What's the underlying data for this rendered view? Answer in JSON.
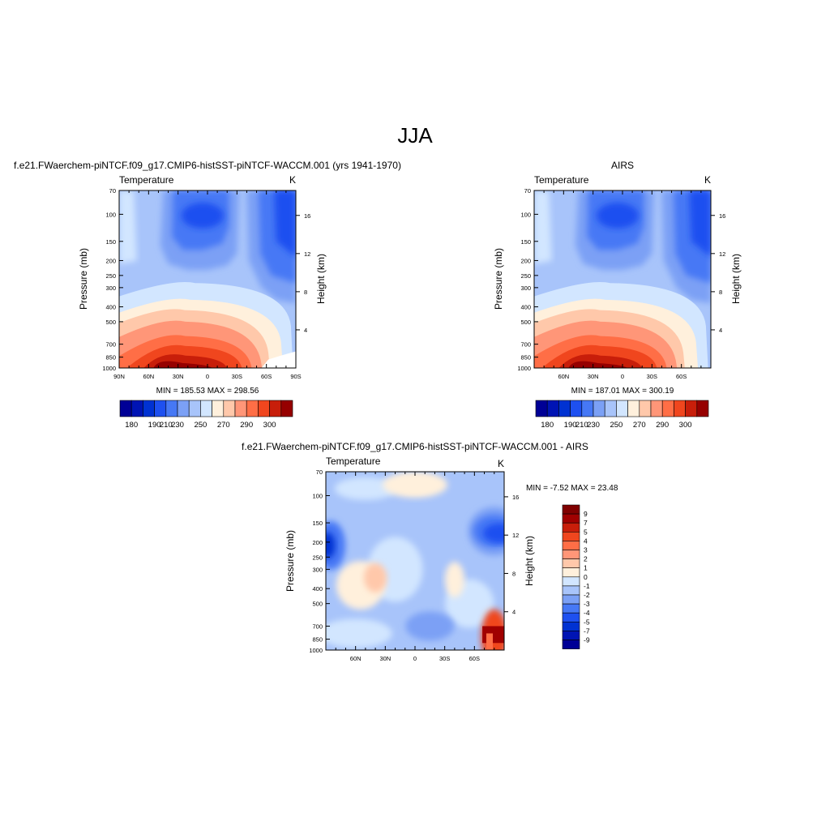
{
  "page_title": "JJA",
  "colors": {
    "temp_scale": [
      "#000096",
      "#0014b4",
      "#0032d2",
      "#1e50f0",
      "#4678f5",
      "#7ba0f5",
      "#a8c4fa",
      "#d2e6ff",
      "#fff0dc",
      "#ffc8aa",
      "#ff9678",
      "#ff6e46",
      "#f0461e",
      "#c81e0a",
      "#960000"
    ],
    "diff_scale": [
      "#000096",
      "#0014b4",
      "#0032d2",
      "#1e50f0",
      "#4678f5",
      "#7ba0f5",
      "#a8c4fa",
      "#d2e6ff",
      "#fff0dc",
      "#ffc8aa",
      "#ff9678",
      "#ff6e46",
      "#f0461e",
      "#c81e0a",
      "#a00000",
      "#800000"
    ]
  },
  "chart_data": [
    {
      "type": "heatmap",
      "id": "model",
      "title": "f.e21.FWaerchem-piNTCF.f09_g17.CMIP6-histSST-piNTCF-WACCM.001 (yrs 1941-1970)",
      "left_label": "Temperature",
      "units": "K",
      "ylabel": "Pressure (mb)",
      "y2label": "Height (km)",
      "x_ticks": [
        "90N",
        "60N",
        "30N",
        "0",
        "30S",
        "60S",
        "90S"
      ],
      "x_tick_values": [
        90,
        60,
        30,
        0,
        -30,
        -60,
        -90
      ],
      "y_ticks": [
        "70",
        "100",
        "150",
        "200",
        "250",
        "300",
        "400",
        "500",
        "700",
        "850",
        "1000"
      ],
      "y_tick_values": [
        70,
        100,
        150,
        200,
        250,
        300,
        400,
        500,
        700,
        850,
        1000
      ],
      "y2_ticks": [
        "4",
        "8",
        "12",
        "16"
      ],
      "y2_tick_values": [
        4,
        8,
        12,
        16
      ],
      "ylim": [
        1000,
        70
      ],
      "xlim": [
        90,
        -90
      ],
      "stats": "MIN = 185.53  MAX = 298.56",
      "stats_min": 185.53,
      "stats_max": 298.56,
      "colorbar_labels": [
        "180",
        "190",
        "210",
        "230",
        "250",
        "270",
        "290",
        "300"
      ],
      "colorbar_levels": [
        180,
        185,
        190,
        200,
        210,
        220,
        230,
        240,
        250,
        260,
        270,
        280,
        290,
        295,
        300
      ],
      "missing_bottom_right": true
    },
    {
      "type": "heatmap",
      "id": "obs",
      "title": "AIRS",
      "left_label": "Temperature",
      "units": "K",
      "ylabel": "Pressure (mb)",
      "y2label": "Height (km)",
      "x_ticks": [
        "60N",
        "30N",
        "0",
        "30S",
        "60S"
      ],
      "x_tick_values": [
        60,
        30,
        0,
        -30,
        -60
      ],
      "y_ticks": [
        "70",
        "100",
        "150",
        "200",
        "250",
        "300",
        "400",
        "500",
        "700",
        "850",
        "1000"
      ],
      "y_tick_values": [
        70,
        100,
        150,
        200,
        250,
        300,
        400,
        500,
        700,
        850,
        1000
      ],
      "y2_ticks": [
        "4",
        "8",
        "12",
        "16"
      ],
      "y2_tick_values": [
        4,
        8,
        12,
        16
      ],
      "ylim": [
        1000,
        70
      ],
      "xlim": [
        90,
        -90
      ],
      "stats": "MIN = 187.01  MAX = 300.19",
      "stats_min": 187.01,
      "stats_max": 300.19,
      "colorbar_labels": [
        "180",
        "190",
        "210",
        "230",
        "250",
        "270",
        "290",
        "300"
      ],
      "colorbar_levels": [
        180,
        185,
        190,
        200,
        210,
        220,
        230,
        240,
        250,
        260,
        270,
        280,
        290,
        295,
        300
      ]
    },
    {
      "type": "heatmap",
      "id": "diff",
      "title": "f.e21.FWaerchem-piNTCF.f09_g17.CMIP6-histSST-piNTCF-WACCM.001 - AIRS",
      "left_label": "Temperature",
      "units": "K",
      "ylabel": "Pressure (mb)",
      "y2label": "Height (km)",
      "x_ticks": [
        "60N",
        "30N",
        "0",
        "30S",
        "60S"
      ],
      "x_tick_values": [
        60,
        30,
        0,
        -30,
        -60
      ],
      "y_ticks": [
        "70",
        "100",
        "150",
        "200",
        "250",
        "300",
        "400",
        "500",
        "700",
        "850",
        "1000"
      ],
      "y_tick_values": [
        70,
        100,
        150,
        200,
        250,
        300,
        400,
        500,
        700,
        850,
        1000
      ],
      "y2_ticks": [
        "4",
        "8",
        "12",
        "16"
      ],
      "y2_tick_values": [
        4,
        8,
        12,
        16
      ],
      "ylim": [
        1000,
        70
      ],
      "xlim": [
        90,
        -90
      ],
      "stats": "MIN =  -7.52  MAX =  23.48",
      "stats_min": -7.52,
      "stats_max": 23.48,
      "colorbar_labels": [
        "9",
        "7",
        "5",
        "4",
        "3",
        "2",
        "1",
        "0",
        "-1",
        "-2",
        "-3",
        "-4",
        "-5",
        "-7",
        "-9"
      ],
      "colorbar_levels": [
        9,
        7,
        5,
        4,
        3,
        2,
        1,
        0,
        -1,
        -2,
        -3,
        -4,
        -5,
        -7,
        -9
      ]
    }
  ]
}
